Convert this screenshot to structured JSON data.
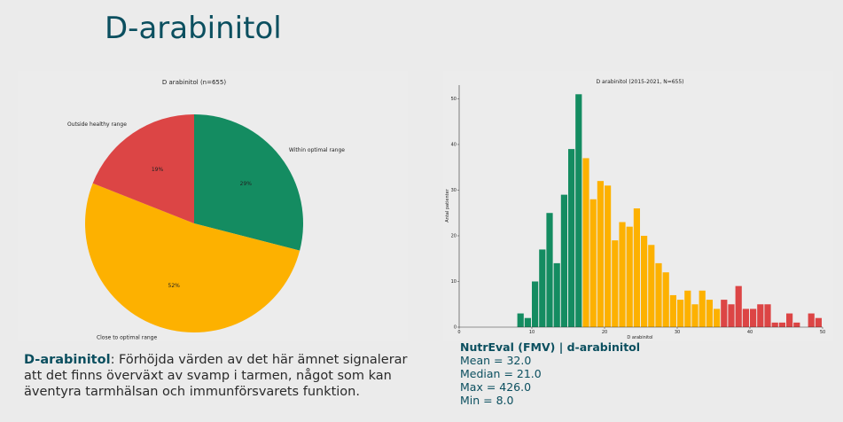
{
  "title": "D-arabinitol",
  "colors": {
    "green": "#148c61",
    "yellow": "#fdb100",
    "red": "#dc4545",
    "title": "#0b4f5f"
  },
  "pie": {
    "title": "D arabinitol (n=655)",
    "slices": [
      {
        "label": "Within optimal range",
        "pct_label": "29%",
        "value": 29,
        "color": "#148c61"
      },
      {
        "label": "Close to optimal range",
        "pct_label": "52%",
        "value": 52,
        "color": "#fdb100"
      },
      {
        "label": "Outside healthy range",
        "pct_label": "19%",
        "value": 19,
        "color": "#dc4545"
      }
    ]
  },
  "chart_data": [
    {
      "type": "pie",
      "title": "D arabinitol (n=655)",
      "categories": [
        "Within optimal range",
        "Close to optimal range",
        "Outside healthy range"
      ],
      "values": [
        29,
        52,
        19
      ],
      "value_labels": [
        "29%",
        "52%",
        "19%"
      ]
    },
    {
      "type": "bar",
      "title": "D arabinitol (2015-2021, N=655)",
      "xlabel": "D arabinitol",
      "ylabel": "Antal patienter",
      "xlim": [
        0,
        50
      ],
      "ylim": [
        0,
        53
      ],
      "xticks": [
        0,
        10,
        20,
        30,
        40,
        50
      ],
      "yticks": [
        0,
        10,
        20,
        30,
        40,
        50
      ],
      "bin_width": 1,
      "bins": [
        {
          "x": 8,
          "count": 3,
          "zone": "green"
        },
        {
          "x": 9,
          "count": 2,
          "zone": "green"
        },
        {
          "x": 10,
          "count": 10,
          "zone": "green"
        },
        {
          "x": 11,
          "count": 17,
          "zone": "green"
        },
        {
          "x": 12,
          "count": 25,
          "zone": "green"
        },
        {
          "x": 13,
          "count": 14,
          "zone": "green"
        },
        {
          "x": 14,
          "count": 29,
          "zone": "green"
        },
        {
          "x": 15,
          "count": 39,
          "zone": "green"
        },
        {
          "x": 16,
          "count": 51,
          "zone": "green"
        },
        {
          "x": 17,
          "count": 37,
          "zone": "yellow"
        },
        {
          "x": 18,
          "count": 28,
          "zone": "yellow"
        },
        {
          "x": 19,
          "count": 32,
          "zone": "yellow"
        },
        {
          "x": 20,
          "count": 31,
          "zone": "yellow"
        },
        {
          "x": 21,
          "count": 19,
          "zone": "yellow"
        },
        {
          "x": 22,
          "count": 23,
          "zone": "yellow"
        },
        {
          "x": 23,
          "count": 22,
          "zone": "yellow"
        },
        {
          "x": 24,
          "count": 26,
          "zone": "yellow"
        },
        {
          "x": 25,
          "count": 20,
          "zone": "yellow"
        },
        {
          "x": 26,
          "count": 18,
          "zone": "yellow"
        },
        {
          "x": 27,
          "count": 14,
          "zone": "yellow"
        },
        {
          "x": 28,
          "count": 12,
          "zone": "yellow"
        },
        {
          "x": 29,
          "count": 7,
          "zone": "yellow"
        },
        {
          "x": 30,
          "count": 6,
          "zone": "yellow"
        },
        {
          "x": 31,
          "count": 8,
          "zone": "yellow"
        },
        {
          "x": 32,
          "count": 5,
          "zone": "yellow"
        },
        {
          "x": 33,
          "count": 8,
          "zone": "yellow"
        },
        {
          "x": 34,
          "count": 6,
          "zone": "yellow"
        },
        {
          "x": 35,
          "count": 4,
          "zone": "yellow"
        },
        {
          "x": 36,
          "count": 6,
          "zone": "red"
        },
        {
          "x": 37,
          "count": 5,
          "zone": "red"
        },
        {
          "x": 38,
          "count": 9,
          "zone": "red"
        },
        {
          "x": 39,
          "count": 4,
          "zone": "red"
        },
        {
          "x": 40,
          "count": 4,
          "zone": "red"
        },
        {
          "x": 41,
          "count": 5,
          "zone": "red"
        },
        {
          "x": 42,
          "count": 5,
          "zone": "red"
        },
        {
          "x": 43,
          "count": 1,
          "zone": "red"
        },
        {
          "x": 44,
          "count": 1,
          "zone": "red"
        },
        {
          "x": 45,
          "count": 3,
          "zone": "red"
        },
        {
          "x": 46,
          "count": 1,
          "zone": "red"
        },
        {
          "x": 48,
          "count": 3,
          "zone": "red"
        },
        {
          "x": 49,
          "count": 2,
          "zone": "red"
        }
      ]
    }
  ],
  "description": {
    "term": "D-arabinitol",
    "text": ": Förhöjda värden av det här ämnet signalerar att det finns överväxt av svamp i tarmen, något som kan äventyra tarmhälsan och immunförsvarets funktion."
  },
  "stats": {
    "title": "NutrEval (FMV) | d-arabinitol",
    "lines": [
      "Mean = 32.0",
      "Median = 21.0",
      "Max = 426.0",
      "Min = 8.0"
    ]
  }
}
